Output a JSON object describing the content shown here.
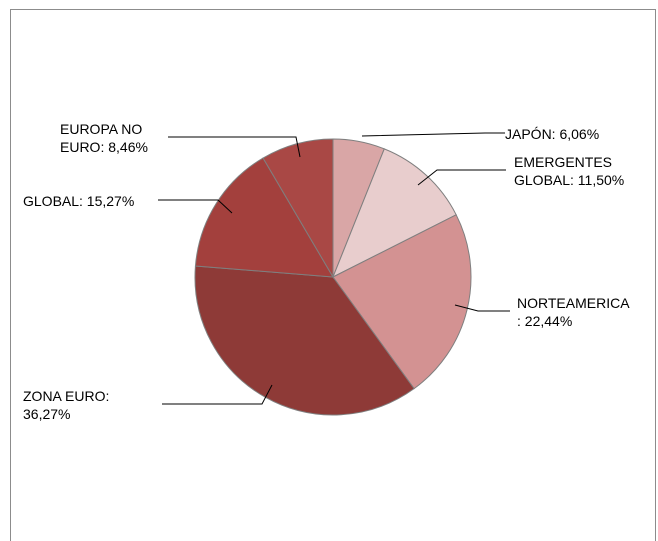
{
  "chart_data": {
    "type": "pie",
    "title": "",
    "slices": [
      {
        "label_lines": [
          "JAPÓN: 6,06%"
        ],
        "value": 6.06,
        "color": "#d9a6a6"
      },
      {
        "label_lines": [
          "EMERGENTES",
          "GLOBAL: 11,50%"
        ],
        "value": 11.5,
        "color": "#e8cdcd"
      },
      {
        "label_lines": [
          "NORTEAMERICA",
          ": 22,44%"
        ],
        "value": 22.44,
        "color": "#d39292"
      },
      {
        "label_lines": [
          "ZONA EURO:",
          "36,27%"
        ],
        "value": 36.27,
        "color": "#8e3a37"
      },
      {
        "label_lines": [
          "GLOBAL: 15,27%"
        ],
        "value": 15.27,
        "color": "#a3403d"
      },
      {
        "label_lines": [
          "EUROPA NO",
          "EURO: 8,46%"
        ],
        "value": 8.46,
        "color": "#a94845"
      }
    ]
  }
}
